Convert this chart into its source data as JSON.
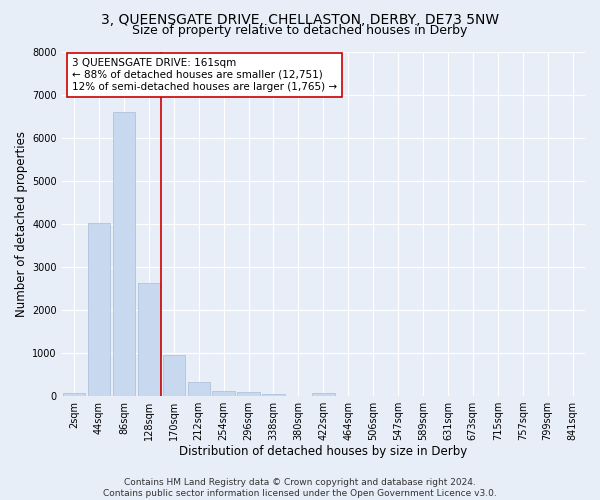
{
  "title": "3, QUEENSGATE DRIVE, CHELLASTON, DERBY, DE73 5NW",
  "subtitle": "Size of property relative to detached houses in Derby",
  "xlabel": "Distribution of detached houses by size in Derby",
  "ylabel": "Number of detached properties",
  "footer_line1": "Contains HM Land Registry data © Crown copyright and database right 2024.",
  "footer_line2": "Contains public sector information licensed under the Open Government Licence v3.0.",
  "bar_labels": [
    "2sqm",
    "44sqm",
    "86sqm",
    "128sqm",
    "170sqm",
    "212sqm",
    "254sqm",
    "296sqm",
    "338sqm",
    "380sqm",
    "422sqm",
    "464sqm",
    "506sqm",
    "547sqm",
    "589sqm",
    "631sqm",
    "673sqm",
    "715sqm",
    "757sqm",
    "799sqm",
    "841sqm"
  ],
  "bar_values": [
    70,
    4020,
    6600,
    2620,
    960,
    330,
    115,
    90,
    50,
    0,
    60,
    0,
    0,
    0,
    0,
    0,
    0,
    0,
    0,
    0,
    0
  ],
  "bar_color": "#c8d8ee",
  "bar_edge_color": "#a8bcd8",
  "ylim": [
    0,
    8000
  ],
  "yticks": [
    0,
    1000,
    2000,
    3000,
    4000,
    5000,
    6000,
    7000,
    8000
  ],
  "vline_color": "#cc0000",
  "vline_position": 3.5,
  "annotation_title": "3 QUEENSGATE DRIVE: 161sqm",
  "annotation_line1": "← 88% of detached houses are smaller (12,751)",
  "annotation_line2": "12% of semi-detached houses are larger (1,765) →",
  "annotation_box_color": "#ffffff",
  "annotation_box_edge": "#cc0000",
  "bg_color": "#e8eef8",
  "plot_bg_color": "#e8eef8",
  "grid_color": "#ffffff",
  "title_fontsize": 10,
  "subtitle_fontsize": 9,
  "axis_label_fontsize": 8.5,
  "tick_fontsize": 7,
  "annotation_fontsize": 7.5,
  "footer_fontsize": 6.5
}
